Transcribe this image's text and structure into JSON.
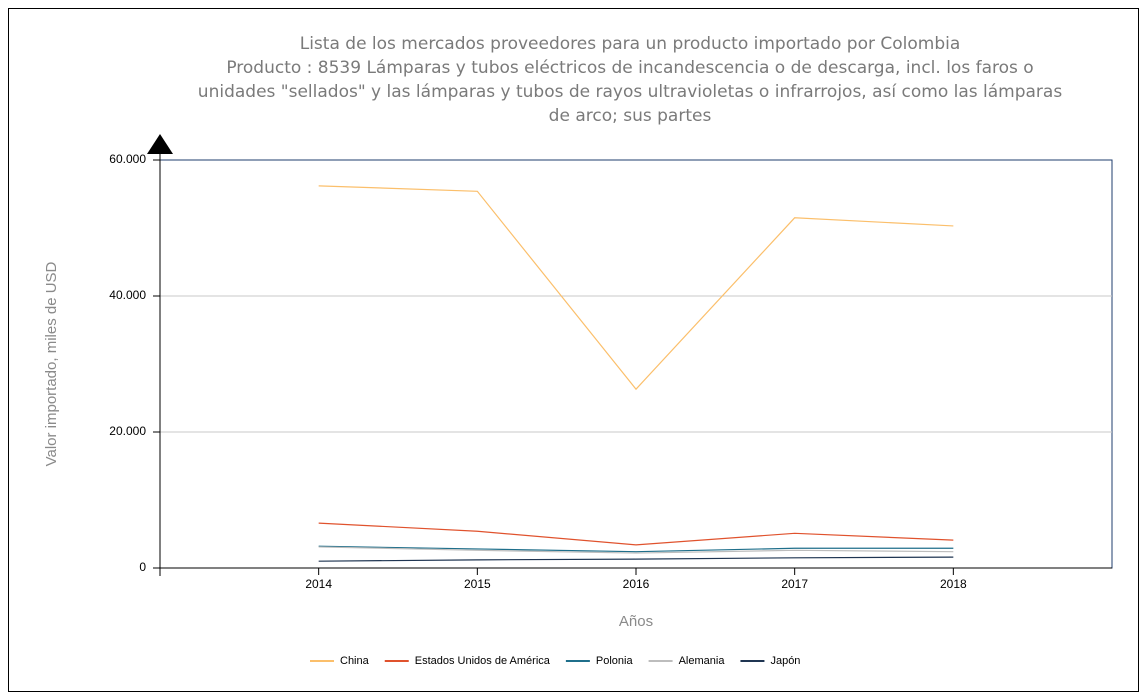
{
  "chart_data": {
    "type": "line",
    "title": [
      "Lista de los mercados proveedores para un producto importado por Colombia",
      "Producto : 8539 Lámparas y tubos eléctricos de incandescencia o de descarga, incl. los faros o",
      "unidades \"sellados\" y las lámparas y tubos de rayos ultravioletas o infrarrojos, así como las lámparas",
      "de arco; sus partes"
    ],
    "x_label": "Años",
    "y_label": "Valor importado, miles de USD",
    "x": [
      2014,
      2015,
      2016,
      2017,
      2018
    ],
    "xlim": [
      2013,
      2019
    ],
    "xticks": [
      2014,
      2015,
      2016,
      2017,
      2018
    ],
    "ylim": [
      0,
      60000
    ],
    "yticks": [
      0,
      {
        "value": 20000,
        "label": "20.000"
      },
      {
        "value": 40000,
        "label": "40.000"
      },
      {
        "value": 60000,
        "label": "60.000"
      }
    ],
    "grid": true,
    "legend": "bottom",
    "series": [
      {
        "name": "China",
        "color": "#fbbf6b",
        "values": [
          56200,
          55400,
          26300,
          51500,
          50300
        ]
      },
      {
        "name": "Estados Unidos de América",
        "color": "#e0522d",
        "values": [
          6600,
          5400,
          3400,
          5100,
          4100
        ]
      },
      {
        "name": "Polonia",
        "color": "#1f6f8b",
        "values": [
          3200,
          2800,
          2400,
          2900,
          2900
        ]
      },
      {
        "name": "Alemania",
        "color": "#bdbdbd",
        "values": [
          3100,
          2600,
          2200,
          2600,
          2400
        ]
      },
      {
        "name": "Japón",
        "color": "#1f3552",
        "values": [
          1000,
          1200,
          1300,
          1500,
          1600
        ]
      }
    ]
  }
}
